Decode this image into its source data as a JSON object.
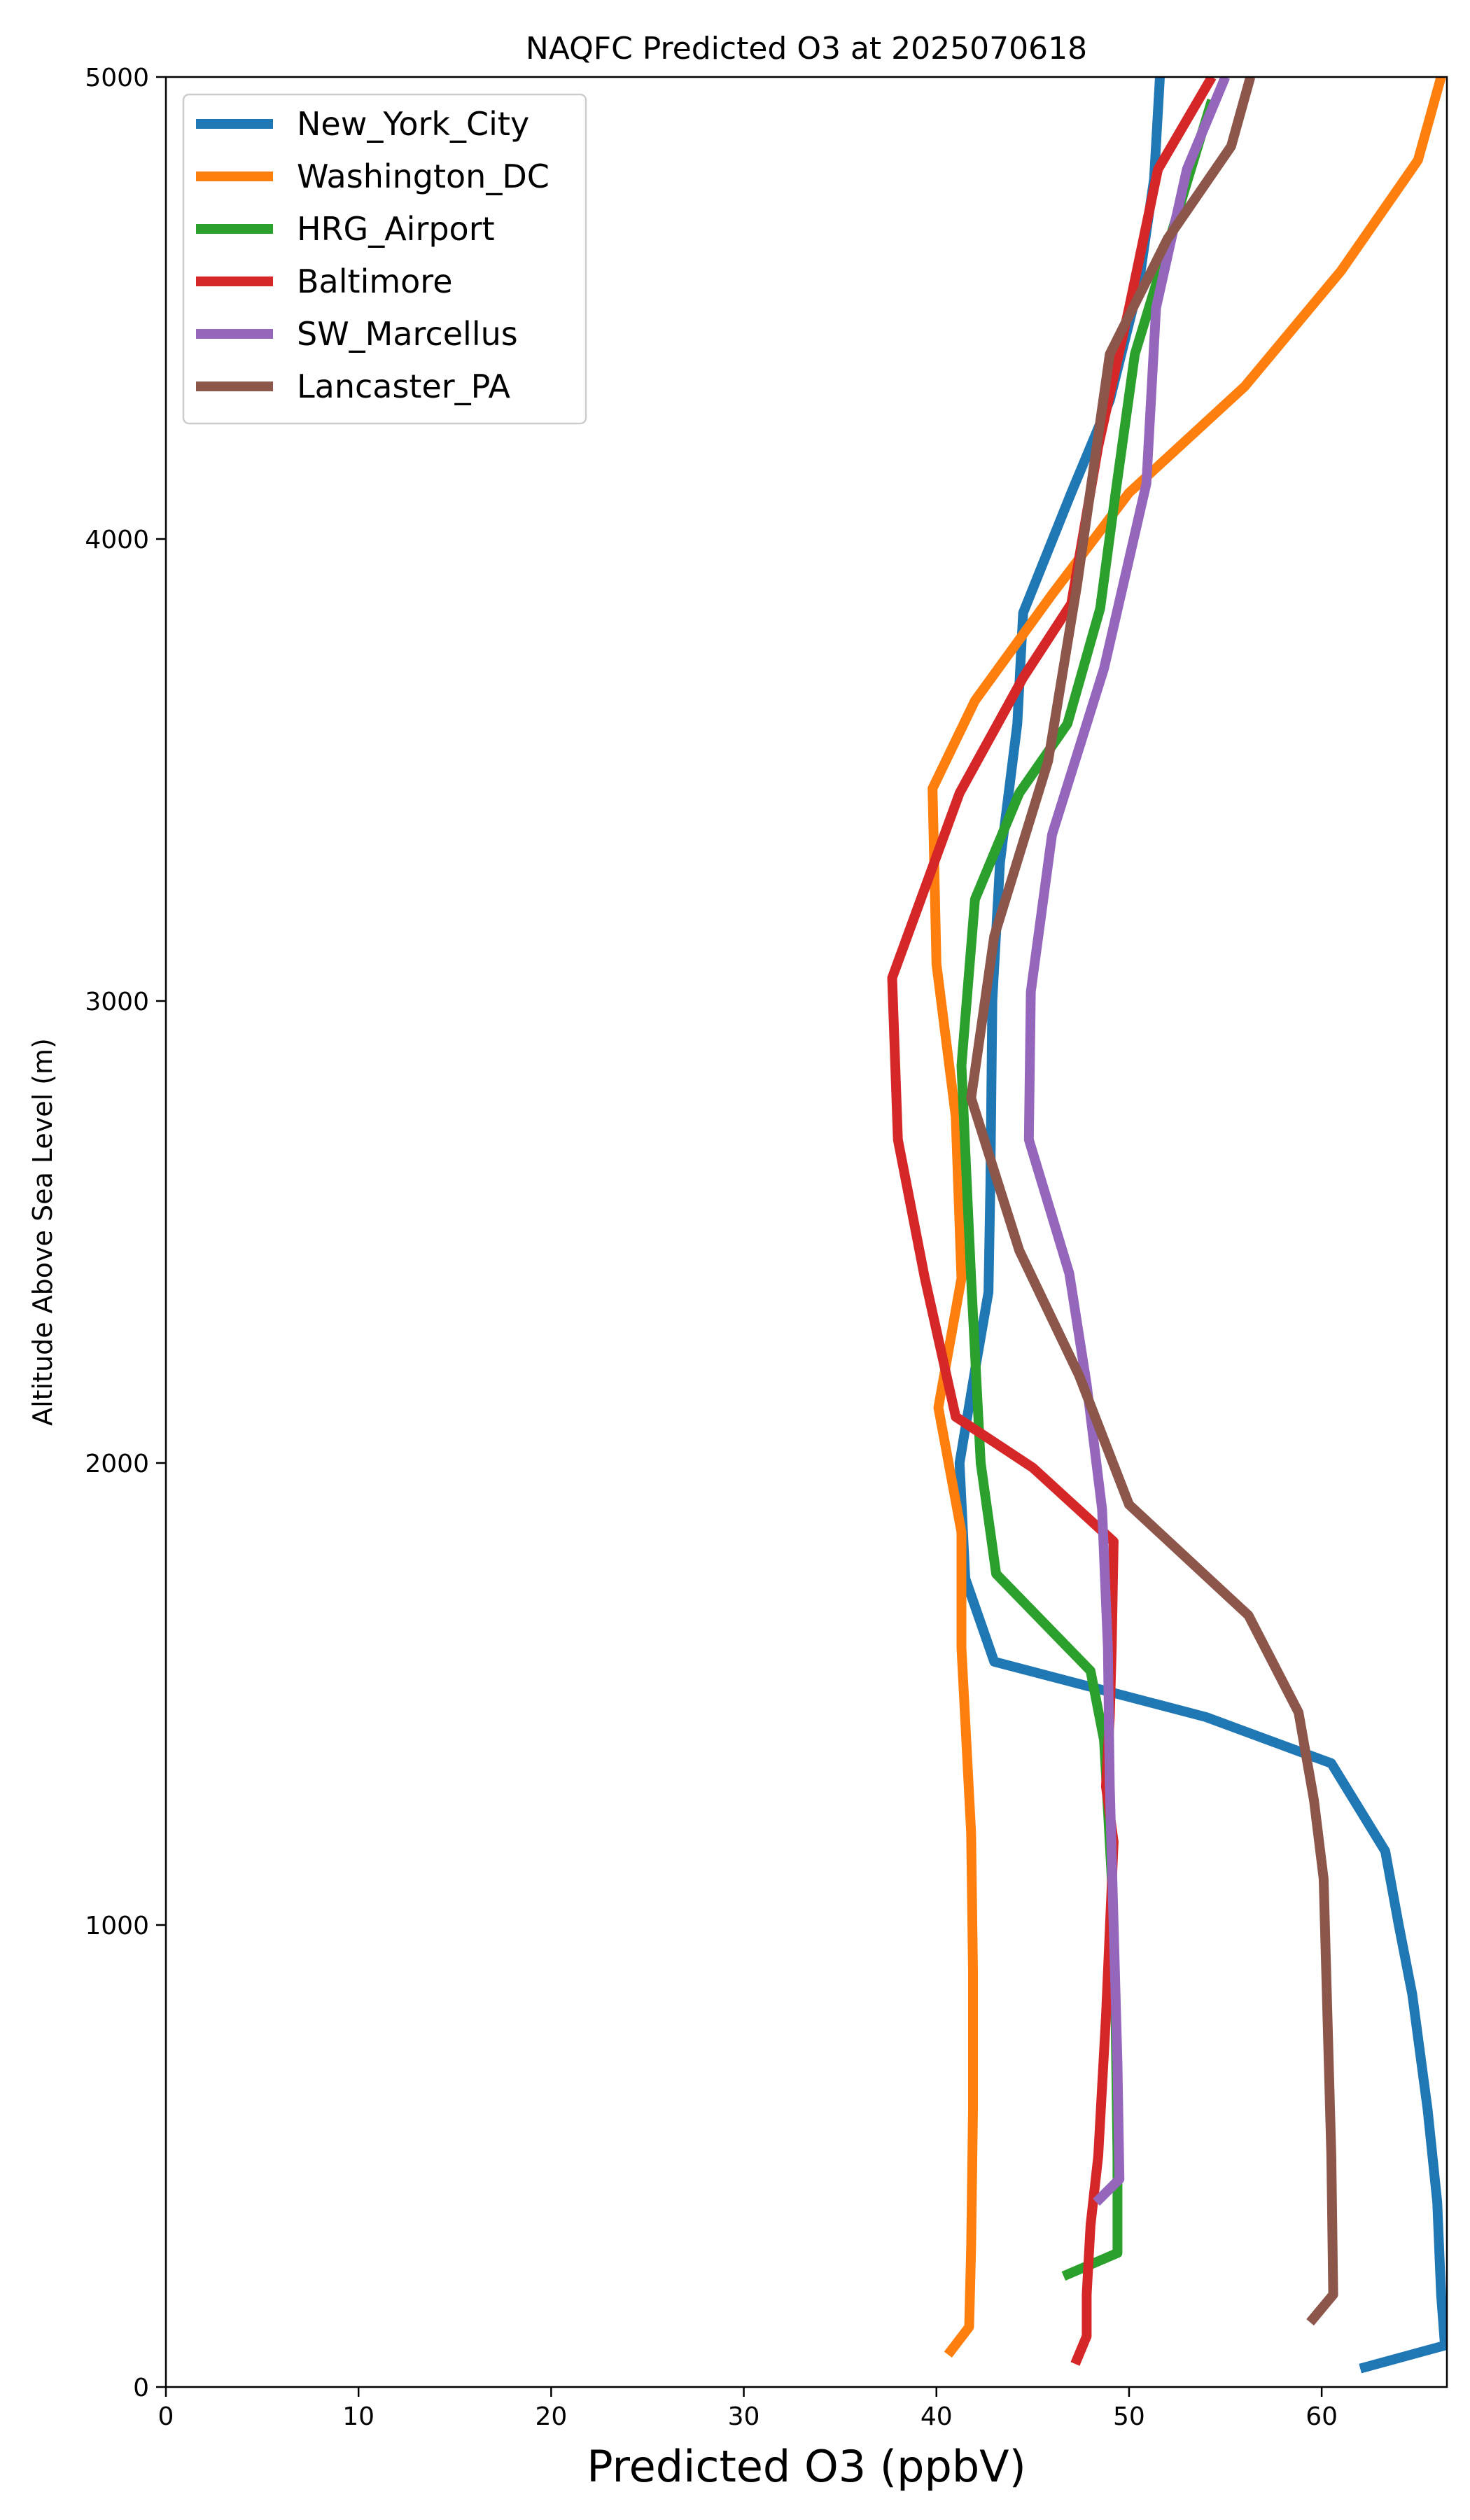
{
  "chart_data": {
    "type": "line",
    "title": "NAQFC Predicted O3 at 2025070618",
    "xlabel": "Predicted O3 (ppbV)",
    "ylabel": "Altitude Above Sea Level (m)",
    "xlim": [
      0,
      66.5
    ],
    "ylim": [
      0,
      5000
    ],
    "xticks": [
      0,
      10,
      20,
      30,
      40,
      50,
      60
    ],
    "yticks": [
      0,
      1000,
      2000,
      3000,
      4000,
      5000
    ],
    "legend_position": "upper-left",
    "grid": false,
    "series": [
      {
        "name": "New_York_City",
        "color": "#1f77b4",
        "points": [
          [
            62.0,
            40
          ],
          [
            66.4,
            90
          ],
          [
            66.2,
            200
          ],
          [
            66.0,
            400
          ],
          [
            65.5,
            600
          ],
          [
            64.7,
            850
          ],
          [
            64.0,
            1000
          ],
          [
            63.3,
            1160
          ],
          [
            60.5,
            1350
          ],
          [
            54.0,
            1450
          ],
          [
            43.0,
            1570
          ],
          [
            41.5,
            1750
          ],
          [
            41.2,
            2000
          ],
          [
            42.0,
            2200
          ],
          [
            42.7,
            2370
          ],
          [
            42.8,
            2600
          ],
          [
            42.9,
            3000
          ],
          [
            43.3,
            3300
          ],
          [
            44.2,
            3600
          ],
          [
            44.5,
            3840
          ],
          [
            47.0,
            4100
          ],
          [
            49.0,
            4300
          ],
          [
            50.5,
            4550
          ],
          [
            51.3,
            4780
          ],
          [
            51.6,
            5000
          ]
        ]
      },
      {
        "name": "Washington_DC",
        "color": "#ff7f0e",
        "points": [
          [
            40.6,
            70
          ],
          [
            41.7,
            130
          ],
          [
            41.8,
            300
          ],
          [
            41.9,
            600
          ],
          [
            41.9,
            900
          ],
          [
            41.8,
            1200
          ],
          [
            41.3,
            1600
          ],
          [
            41.3,
            1850
          ],
          [
            40.1,
            2120
          ],
          [
            41.3,
            2400
          ],
          [
            41.0,
            2750
          ],
          [
            40.0,
            3080
          ],
          [
            39.8,
            3460
          ],
          [
            42.0,
            3650
          ],
          [
            46.0,
            3880
          ],
          [
            50.0,
            4100
          ],
          [
            56.0,
            4330
          ],
          [
            61.0,
            4580
          ],
          [
            65.0,
            4820
          ],
          [
            66.2,
            5000
          ]
        ]
      },
      {
        "name": "HRG_Airport",
        "color": "#2ca02c",
        "points": [
          [
            46.6,
            240
          ],
          [
            49.4,
            290
          ],
          [
            49.4,
            500
          ],
          [
            49.3,
            800
          ],
          [
            49.1,
            1100
          ],
          [
            48.7,
            1400
          ],
          [
            48.0,
            1550
          ],
          [
            43.1,
            1760
          ],
          [
            42.3,
            2000
          ],
          [
            41.8,
            2400
          ],
          [
            41.3,
            2860
          ],
          [
            42.0,
            3220
          ],
          [
            44.3,
            3450
          ],
          [
            46.8,
            3600
          ],
          [
            48.5,
            3850
          ],
          [
            49.3,
            4100
          ],
          [
            50.3,
            4400
          ],
          [
            54.3,
            4950
          ]
        ]
      },
      {
        "name": "Baltimore",
        "color": "#d62728",
        "points": [
          [
            47.2,
            50
          ],
          [
            47.8,
            110
          ],
          [
            47.8,
            200
          ],
          [
            48.0,
            350
          ],
          [
            48.4,
            500
          ],
          [
            48.8,
            800
          ],
          [
            49.2,
            1180
          ],
          [
            48.8,
            1300
          ],
          [
            49.0,
            1450
          ],
          [
            49.1,
            1600
          ],
          [
            49.2,
            1830
          ],
          [
            45.0,
            1990
          ],
          [
            41.0,
            2100
          ],
          [
            39.4,
            2400
          ],
          [
            38.0,
            2700
          ],
          [
            37.7,
            3050
          ],
          [
            41.2,
            3450
          ],
          [
            44.5,
            3700
          ],
          [
            47.0,
            3860
          ],
          [
            48.4,
            4200
          ],
          [
            50.0,
            4500
          ],
          [
            51.5,
            4800
          ],
          [
            54.3,
            5000
          ]
        ]
      },
      {
        "name": "SW_Marcellus",
        "color": "#9467bd",
        "points": [
          [
            48.3,
            400
          ],
          [
            49.5,
            450
          ],
          [
            49.4,
            700
          ],
          [
            49.2,
            1000
          ],
          [
            49.0,
            1300
          ],
          [
            48.9,
            1600
          ],
          [
            48.6,
            1900
          ],
          [
            47.8,
            2170
          ],
          [
            46.9,
            2410
          ],
          [
            44.8,
            2700
          ],
          [
            44.9,
            3020
          ],
          [
            46.0,
            3360
          ],
          [
            48.7,
            3720
          ],
          [
            50.9,
            4120
          ],
          [
            51.4,
            4500
          ],
          [
            53.0,
            4800
          ],
          [
            55.0,
            5000
          ]
        ]
      },
      {
        "name": "Lancaster_PA",
        "color": "#8c564b",
        "points": [
          [
            59.4,
            140
          ],
          [
            60.6,
            200
          ],
          [
            60.5,
            500
          ],
          [
            60.3,
            800
          ],
          [
            60.1,
            1100
          ],
          [
            59.6,
            1270
          ],
          [
            58.8,
            1460
          ],
          [
            56.2,
            1670
          ],
          [
            50.0,
            1910
          ],
          [
            47.4,
            2190
          ],
          [
            44.3,
            2460
          ],
          [
            41.8,
            2790
          ],
          [
            43.0,
            3140
          ],
          [
            45.8,
            3520
          ],
          [
            47.3,
            3900
          ],
          [
            49.0,
            4400
          ],
          [
            52.0,
            4650
          ],
          [
            55.3,
            4850
          ],
          [
            56.3,
            5000
          ]
        ]
      }
    ]
  }
}
